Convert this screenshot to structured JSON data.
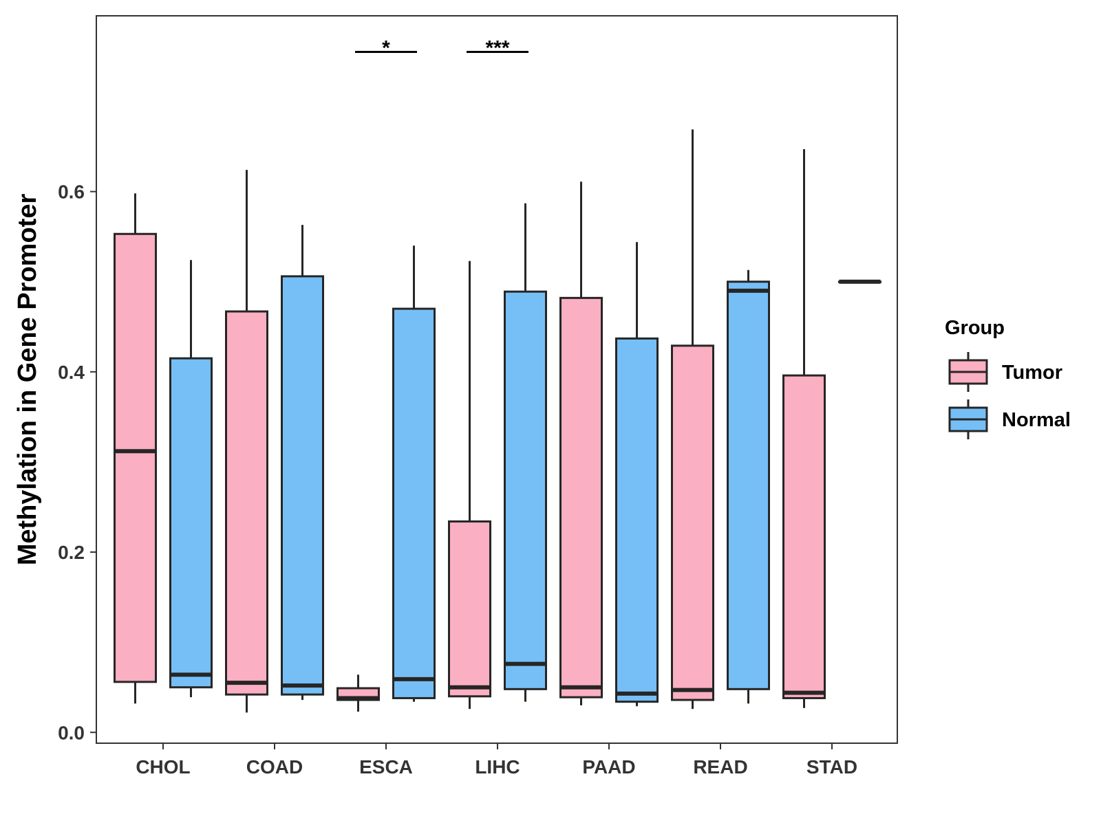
{
  "chart_data": {
    "type": "boxplot",
    "title": "",
    "xlabel": "",
    "ylabel": "Methylation in Gene Promoter",
    "ylim": [
      -0.012,
      0.795
    ],
    "yticks": [
      0.0,
      0.2,
      0.4,
      0.6
    ],
    "ytick_labels": [
      "0.0",
      "0.2",
      "0.4",
      "0.6"
    ],
    "categories": [
      "CHOL",
      "COAD",
      "ESCA",
      "LIHC",
      "PAAD",
      "READ",
      "STAD"
    ],
    "legend": {
      "title": "Group",
      "position": "right",
      "entries": [
        {
          "name": "Tumor",
          "color": "#FBAFC2"
        },
        {
          "name": "Normal",
          "color": "#76BFF6"
        }
      ]
    },
    "series": [
      {
        "name": "Tumor",
        "color": "#FBAFC2",
        "boxes": [
          {
            "category": "CHOL",
            "min": 0.032,
            "q1": 0.056,
            "median": 0.312,
            "q3": 0.553,
            "max": 0.598
          },
          {
            "category": "COAD",
            "min": 0.022,
            "q1": 0.042,
            "median": 0.055,
            "q3": 0.467,
            "max": 0.624
          },
          {
            "category": "ESCA",
            "min": 0.023,
            "q1": 0.036,
            "median": 0.038,
            "q3": 0.049,
            "max": 0.064
          },
          {
            "category": "LIHC",
            "min": 0.026,
            "q1": 0.04,
            "median": 0.05,
            "q3": 0.234,
            "max": 0.523
          },
          {
            "category": "PAAD",
            "min": 0.03,
            "q1": 0.039,
            "median": 0.05,
            "q3": 0.482,
            "max": 0.611
          },
          {
            "category": "READ",
            "min": 0.026,
            "q1": 0.036,
            "median": 0.047,
            "q3": 0.429,
            "max": 0.669
          },
          {
            "category": "STAD",
            "min": 0.027,
            "q1": 0.038,
            "median": 0.044,
            "q3": 0.396,
            "max": 0.647
          }
        ]
      },
      {
        "name": "Normal",
        "color": "#76BFF6",
        "boxes": [
          {
            "category": "CHOL",
            "min": 0.039,
            "q1": 0.05,
            "median": 0.064,
            "q3": 0.415,
            "max": 0.524
          },
          {
            "category": "COAD",
            "min": 0.036,
            "q1": 0.042,
            "median": 0.052,
            "q3": 0.506,
            "max": 0.563
          },
          {
            "category": "ESCA",
            "min": 0.034,
            "q1": 0.038,
            "median": 0.059,
            "q3": 0.47,
            "max": 0.54
          },
          {
            "category": "LIHC",
            "min": 0.034,
            "q1": 0.048,
            "median": 0.076,
            "q3": 0.489,
            "max": 0.587
          },
          {
            "category": "PAAD",
            "min": 0.029,
            "q1": 0.034,
            "median": 0.043,
            "q3": 0.437,
            "max": 0.544
          },
          {
            "category": "READ",
            "min": 0.032,
            "q1": 0.048,
            "median": 0.49,
            "q3": 0.5,
            "max": 0.513
          },
          {
            "category": "STAD",
            "min": 0.5,
            "q1": 0.5,
            "median": 0.5,
            "q3": 0.5,
            "max": 0.5
          }
        ]
      }
    ],
    "significance": [
      {
        "category": "ESCA",
        "label": "*",
        "y": 0.755
      },
      {
        "category": "LIHC",
        "label": "***",
        "y": 0.755
      }
    ]
  }
}
